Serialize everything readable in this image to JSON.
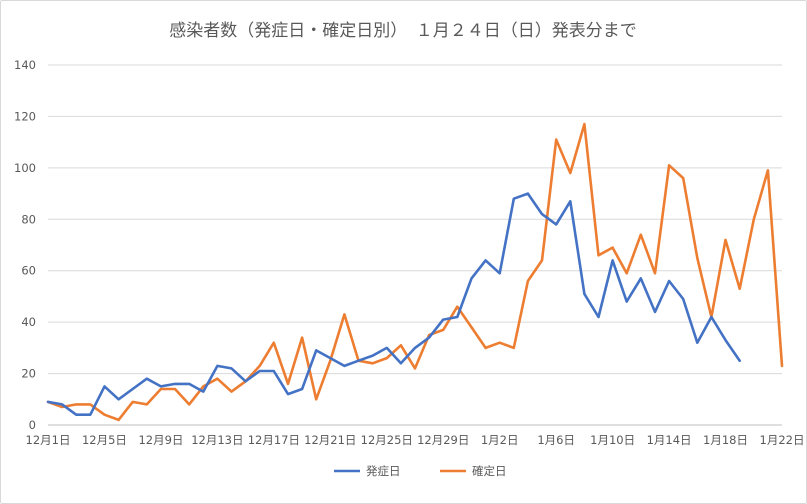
{
  "chart_data": {
    "type": "line",
    "title": "感染者数（発症日・確定日別）　１月２４日（日）発表分まで",
    "xlabel": "",
    "ylabel": "",
    "ylim": [
      0,
      140
    ],
    "y_ticks": [
      0,
      20,
      40,
      60,
      80,
      100,
      120,
      140
    ],
    "grid": "horizontal",
    "legend": "bottom",
    "x": [
      "12月1日",
      "12月2日",
      "12月3日",
      "12月4日",
      "12月5日",
      "12月6日",
      "12月7日",
      "12月8日",
      "12月9日",
      "12月10日",
      "12月11日",
      "12月12日",
      "12月13日",
      "12月14日",
      "12月15日",
      "12月16日",
      "12月17日",
      "12月18日",
      "12月19日",
      "12月20日",
      "12月21日",
      "12月22日",
      "12月23日",
      "12月24日",
      "12月25日",
      "12月26日",
      "12月27日",
      "12月28日",
      "12月29日",
      "12月30日",
      "12月31日",
      "1月1日",
      "1月2日",
      "1月3日",
      "1月4日",
      "1月5日",
      "1月6日",
      "1月7日",
      "1月8日",
      "1月9日",
      "1月10日",
      "1月11日",
      "1月12日",
      "1月13日",
      "1月14日",
      "1月15日",
      "1月16日",
      "1月17日",
      "1月18日",
      "1月19日",
      "1月20日",
      "1月21日",
      "1月22日"
    ],
    "x_tick_labels": [
      "12月1日",
      "12月5日",
      "12月9日",
      "12月13日",
      "12月17日",
      "12月21日",
      "12月25日",
      "12月29日",
      "1月2日",
      "1月6日",
      "1月10日",
      "1月14日",
      "1月18日",
      "1月22日"
    ],
    "series": [
      {
        "name": "発症日",
        "color": "#4472c4",
        "values": [
          9,
          8,
          4,
          4,
          15,
          10,
          14,
          18,
          15,
          16,
          16,
          13,
          23,
          22,
          17,
          21,
          21,
          12,
          14,
          29,
          26,
          23,
          25,
          27,
          30,
          24,
          30,
          34,
          41,
          42,
          57,
          64,
          59,
          88,
          90,
          82,
          78,
          87,
          51,
          42,
          64,
          48,
          57,
          44,
          56,
          49,
          32,
          42,
          33,
          25,
          null,
          null,
          null
        ]
      },
      {
        "name": "確定日",
        "color": "#ed7d31",
        "values": [
          9,
          7,
          8,
          8,
          4,
          2,
          9,
          8,
          14,
          14,
          8,
          15,
          18,
          13,
          17,
          23,
          32,
          16,
          34,
          10,
          25,
          43,
          25,
          24,
          26,
          31,
          22,
          35,
          37,
          46,
          38,
          30,
          32,
          30,
          56,
          64,
          111,
          98,
          117,
          66,
          69,
          59,
          74,
          59,
          101,
          96,
          65,
          42,
          72,
          53,
          80,
          99,
          23
        ]
      }
    ]
  }
}
